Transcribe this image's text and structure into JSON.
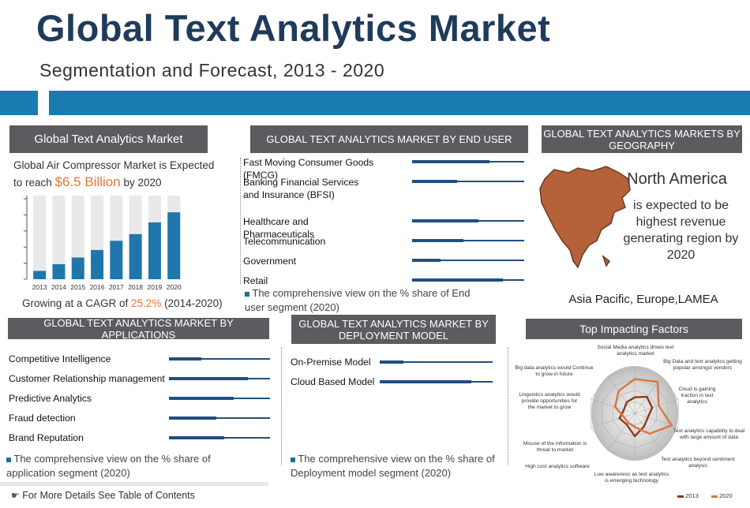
{
  "header": {
    "title": "Global Text Analytics Market",
    "subtitle": "Segmentation and Forecast, 2013 - 2020"
  },
  "market_panel": {
    "heading": "Global Text Analytics Market",
    "statement_pre": "Global Air Compressor Market is Expected",
    "statement_to": "to reach",
    "statement_value": "$6.5 Billion",
    "statement_post": "by 2020",
    "cagr_pre": "Growing at a CAGR of",
    "cagr_value": "25.2%",
    "cagr_post": "(2014-2020)"
  },
  "end_user_panel": {
    "heading": "GLOBAL TEXT ANALYTICS MARKET BY END USER",
    "items": [
      "Fast Moving Consumer Goods (FMCG)",
      "Banking Financial Services and Insurance (BFSI)",
      "Healthcare and Pharmaceuticals",
      "Telecommunication",
      "Government",
      "Retail"
    ],
    "note": "The comprehensive view on the % share of End user segment (2020)"
  },
  "geography_panel": {
    "heading": "GLOBAL TEXT ANALYTICS MARKETS BY GEOGRAPHY",
    "region": "North America",
    "region_text": "is expected to be highest revenue generating region by 2020",
    "others": "Asia Pacific, Europe,LAMEA"
  },
  "applications_panel": {
    "heading": "GLOBAL TEXT ANALYTICS MARKET BY APPLICATIONS",
    "items": [
      "Competitive Intelligence",
      "Customer Relationship management",
      "Predictive Analytics",
      "Fraud detection",
      "Brand Reputation"
    ],
    "note": "The comprehensive view on the % share of application segment (2020)"
  },
  "deployment_panel": {
    "heading": "GLOBAL TEXT ANALYTICS MARKET BY DEPLOYMENT MODEL",
    "items": [
      "On-Premise Model",
      "Cloud Based Model"
    ],
    "note": "The comprehensive view on the % share of Deployment model segment (2020)"
  },
  "factors_panel": {
    "heading": "Top Impacting Factors",
    "factors": [
      "Social Media analytics drives text analytics market",
      "Big Data and text analytics getting popular amongst vendors",
      "Cloud is gaining traction in text analytics",
      "Text analytics capability to deal with large amount of data",
      "Text analytics beyond sentiment analysis",
      "Low awareness as text analytics is emerging technology",
      "High cost analytics software",
      "Misuse of the information is threat to market",
      "Linguistics analytics would provide opportunities for the market to grow",
      "Big data analytics would Continue to grow in future"
    ],
    "legend": [
      "2013",
      "2020"
    ]
  },
  "footer": {
    "link": "For More Details See Table of Contents"
  },
  "colors": {
    "bar_blue": "#1f76ab",
    "bar_bg": "#e9e9e9",
    "heading_gray": "#5b5c60",
    "accent_orange": "#e0783a",
    "radar_2013": "#8a3b1b",
    "radar_2020": "#d9773e"
  },
  "chart_data": [
    {
      "type": "bar",
      "categories": [
        "2013",
        "2014",
        "2015",
        "2016",
        "2017",
        "2018",
        "2019",
        "2020"
      ],
      "values": [
        1.0,
        1.8,
        2.6,
        3.5,
        4.6,
        5.4,
        6.8,
        8.0
      ],
      "ylim": [
        0,
        10
      ]
    },
    {
      "type": "bar",
      "orientation": "horizontal",
      "categories": [
        "Fast Moving Consumer Goods (FMCG)",
        "Banking Financial Services and Insurance (BFSI)",
        "Healthcare and Pharmaceuticals",
        "Telecommunication",
        "Government",
        "Retail"
      ],
      "values": [
        0.69,
        0.4,
        0.59,
        0.46,
        0.25,
        0.81
      ],
      "ylim": [
        0,
        1
      ]
    },
    {
      "type": "bar",
      "orientation": "horizontal",
      "categories": [
        "Competitive Intelligence",
        "Customer Relationship management",
        "Predictive Analytics",
        "Fraud detection",
        "Brand Reputation"
      ],
      "values": [
        0.32,
        0.78,
        0.64,
        0.47,
        0.55
      ],
      "ylim": [
        0,
        1
      ]
    },
    {
      "type": "bar",
      "orientation": "horizontal",
      "categories": [
        "On-Premise Model",
        "Cloud Based Model"
      ],
      "values": [
        0.21,
        0.81
      ],
      "ylim": [
        0,
        1
      ]
    },
    {
      "type": "radar",
      "categories": [
        "Social Media analytics drives text analytics market",
        "Big Data and text analytics getting popular amongst vendors",
        "Cloud is gaining traction in text analytics",
        "Text analytics capability to deal with large amount of data",
        "Text analytics beyond sentiment analysis",
        "Low awareness as text analytics is emerging technology",
        "High cost analytics software",
        "Misuse of the information is threat to market",
        "Linguistics analytics would provide opportunities for the market to grow",
        "Big data analytics would Continue to grow in future"
      ],
      "series": [
        {
          "name": "2013",
          "values": [
            0.35,
            0.45,
            0.4,
            0.3,
            0.35,
            0.5,
            0.3,
            0.35,
            0.25,
            0.3
          ]
        },
        {
          "name": "2020",
          "values": [
            0.75,
            0.85,
            0.55,
            0.85,
            0.55,
            0.3,
            0.25,
            0.25,
            0.45,
            0.6
          ]
        }
      ],
      "ylim": [
        0,
        1
      ]
    }
  ]
}
